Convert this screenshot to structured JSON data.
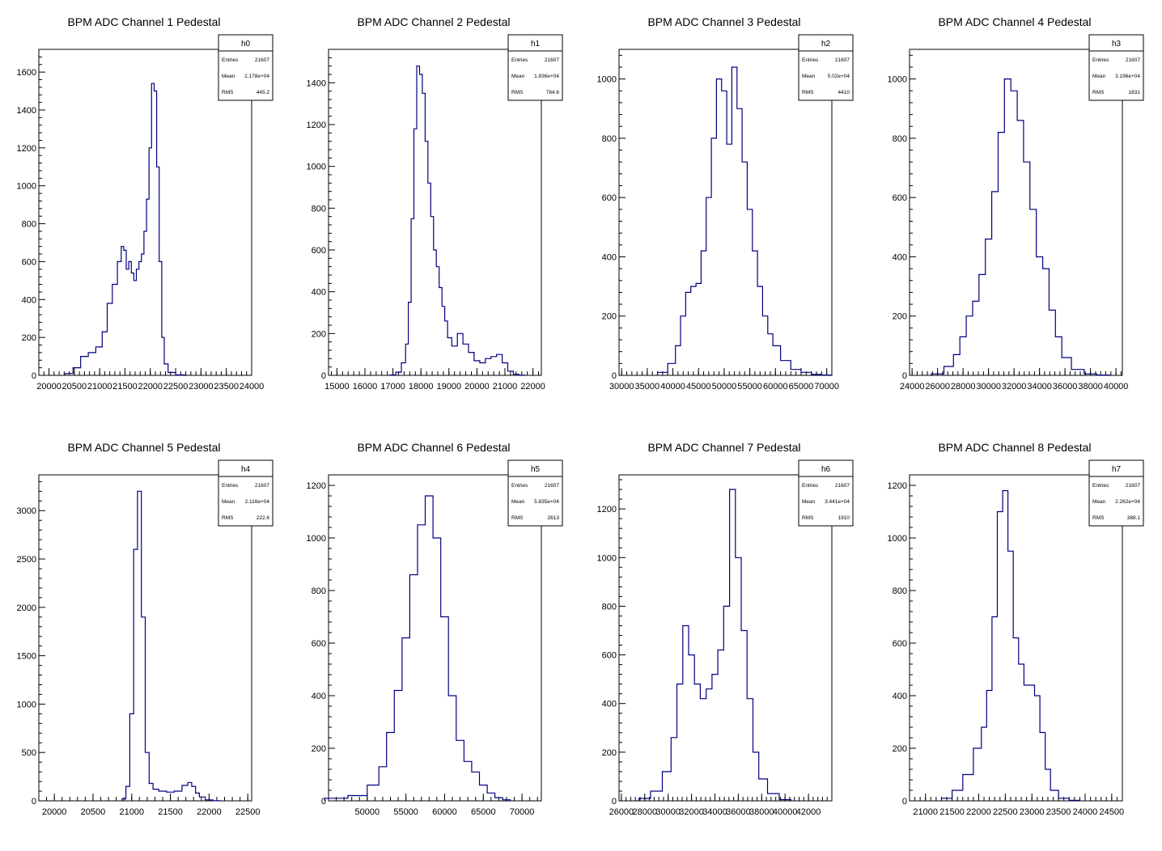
{
  "colors": {
    "line": "#000080",
    "frame": "#000000",
    "background": "#ffffff"
  },
  "stat_labels": {
    "entries": "Entries",
    "mean": "Mean",
    "rms": "RMS"
  },
  "chart_data": [
    {
      "type": "histogram",
      "title": "BPM ADC Channel 1 Pedestal",
      "stats": {
        "name": "h0",
        "entries": "21607",
        "mean": "2.178e+04",
        "rms": "445.2"
      },
      "xlim": [
        19800,
        24000
      ],
      "ylim": [
        0,
        1720
      ],
      "xticks": [
        20000,
        20500,
        21000,
        21500,
        22000,
        22500,
        23000,
        23500,
        24000
      ],
      "xtick_labels": [
        "20000",
        "20500",
        "21000",
        "21500",
        "22000",
        "22500",
        "23000",
        "23500",
        "24000"
      ],
      "yticks": [
        0,
        200,
        400,
        600,
        800,
        1000,
        1200,
        1400,
        1600
      ],
      "ytick_labels": [
        "0",
        "200",
        "400",
        "600",
        "800",
        "1000",
        "1200",
        "1400",
        "1600"
      ],
      "x": [
        20400,
        20550,
        20700,
        20850,
        21000,
        21100,
        21200,
        21300,
        21400,
        21450,
        21500,
        21550,
        21600,
        21650,
        21700,
        21750,
        21800,
        21850,
        21900,
        21950,
        22000,
        22050,
        22100,
        22150,
        22200,
        22250,
        22300,
        22400,
        22600
      ],
      "y": [
        10,
        40,
        100,
        120,
        150,
        230,
        380,
        480,
        600,
        680,
        660,
        560,
        600,
        540,
        500,
        560,
        600,
        640,
        760,
        930,
        1200,
        1540,
        1500,
        1100,
        600,
        200,
        60,
        15,
        2
      ]
    },
    {
      "type": "histogram",
      "title": "BPM ADC Channel 2 Pedestal",
      "stats": {
        "name": "h1",
        "entries": "21607",
        "mean": "1.836e+04",
        "rms": "784.6"
      },
      "xlim": [
        14700,
        22300
      ],
      "ylim": [
        0,
        1560
      ],
      "xticks": [
        15000,
        16000,
        17000,
        18000,
        19000,
        20000,
        21000,
        22000
      ],
      "xtick_labels": [
        "15000",
        "16000",
        "17000",
        "18000",
        "19000",
        "20000",
        "21000",
        "22000"
      ],
      "yticks": [
        0,
        200,
        400,
        600,
        800,
        1000,
        1200,
        1400
      ],
      "ytick_labels": [
        "0",
        "200",
        "400",
        "600",
        "800",
        "1000",
        "1200",
        "1400"
      ],
      "x": [
        17000,
        17200,
        17400,
        17500,
        17600,
        17700,
        17800,
        17900,
        18000,
        18100,
        18200,
        18300,
        18400,
        18500,
        18600,
        18700,
        18800,
        18900,
        19000,
        19200,
        19400,
        19600,
        19800,
        20000,
        20200,
        20400,
        20600,
        20800,
        21000,
        21200,
        21400,
        21600
      ],
      "y": [
        2,
        15,
        60,
        150,
        350,
        750,
        1180,
        1480,
        1440,
        1350,
        1120,
        920,
        760,
        600,
        520,
        420,
        330,
        260,
        180,
        140,
        200,
        150,
        110,
        70,
        60,
        80,
        90,
        100,
        60,
        20,
        5,
        1
      ]
    },
    {
      "type": "histogram",
      "title": "BPM ADC Channel 3 Pedestal",
      "stats": {
        "name": "h2",
        "entries": "21607",
        "mean": "5.02e+04",
        "rms": "4410"
      },
      "xlim": [
        29500,
        71000
      ],
      "ylim": [
        0,
        1100
      ],
      "xticks": [
        30000,
        35000,
        40000,
        45000,
        50000,
        55000,
        60000,
        65000,
        70000
      ],
      "xtick_labels": [
        "30000",
        "35000",
        "40000",
        "45000",
        "50000",
        "55000",
        "60000",
        "65000",
        "70000"
      ],
      "yticks": [
        0,
        200,
        400,
        600,
        800,
        1000
      ],
      "ytick_labels": [
        "0",
        "200",
        "400",
        "600",
        "800",
        "1000"
      ],
      "x": [
        38000,
        40000,
        41000,
        42000,
        43000,
        44000,
        45000,
        46000,
        47000,
        48000,
        49000,
        50000,
        51000,
        52000,
        53000,
        54000,
        55000,
        56000,
        57000,
        58000,
        59000,
        60000,
        62000,
        64000,
        66000,
        68000,
        70000
      ],
      "y": [
        10,
        40,
        100,
        200,
        280,
        300,
        310,
        420,
        600,
        800,
        1000,
        960,
        780,
        1040,
        900,
        720,
        560,
        420,
        300,
        200,
        140,
        100,
        50,
        20,
        10,
        3,
        1
      ]
    },
    {
      "type": "histogram",
      "title": "BPM ADC Channel 4 Pedestal",
      "stats": {
        "name": "h3",
        "entries": "21607",
        "mean": "3.196e+04",
        "rms": "1831"
      },
      "xlim": [
        23800,
        40500
      ],
      "ylim": [
        0,
        1100
      ],
      "xticks": [
        24000,
        26000,
        28000,
        30000,
        32000,
        34000,
        36000,
        38000,
        40000
      ],
      "xtick_labels": [
        "24000",
        "26000",
        "28000",
        "30000",
        "32000",
        "34000",
        "36000",
        "38000",
        "40000"
      ],
      "yticks": [
        0,
        200,
        400,
        600,
        800,
        1000
      ],
      "ytick_labels": [
        "0",
        "200",
        "400",
        "600",
        "800",
        "1000"
      ],
      "x": [
        26000,
        27000,
        27500,
        28000,
        28500,
        29000,
        29500,
        30000,
        30500,
        31000,
        31500,
        32000,
        32500,
        33000,
        33500,
        34000,
        34500,
        35000,
        35500,
        36000,
        37000,
        38000,
        39000
      ],
      "y": [
        5,
        30,
        70,
        130,
        200,
        250,
        340,
        460,
        620,
        820,
        1000,
        960,
        860,
        720,
        560,
        400,
        360,
        220,
        130,
        60,
        20,
        5,
        1
      ]
    },
    {
      "type": "histogram",
      "title": "BPM ADC Channel 5 Pedestal",
      "stats": {
        "name": "h4",
        "entries": "21607",
        "mean": "2.116e+04",
        "rms": "222.6"
      },
      "xlim": [
        19800,
        22550
      ],
      "ylim": [
        0,
        3370
      ],
      "xticks": [
        20000,
        20500,
        21000,
        21500,
        22000,
        22500
      ],
      "xtick_labels": [
        "20000",
        "20500",
        "21000",
        "21500",
        "22000",
        "22500"
      ],
      "yticks": [
        0,
        500,
        1000,
        1500,
        2000,
        2500,
        3000
      ],
      "ytick_labels": [
        "0",
        "500",
        "1000",
        "1500",
        "2000",
        "2500",
        "3000"
      ],
      "x": [
        20900,
        20950,
        21000,
        21050,
        21100,
        21150,
        21200,
        21250,
        21300,
        21400,
        21500,
        21600,
        21700,
        21750,
        21800,
        21850,
        21900,
        22000,
        22100
      ],
      "y": [
        20,
        150,
        900,
        2600,
        3200,
        1900,
        500,
        180,
        120,
        100,
        90,
        100,
        160,
        190,
        150,
        80,
        40,
        10,
        2
      ]
    },
    {
      "type": "histogram",
      "title": "BPM ADC Channel 6 Pedestal",
      "stats": {
        "name": "h5",
        "entries": "21607",
        "mean": "5.835e+04",
        "rms": "2613"
      },
      "xlim": [
        45000,
        72500
      ],
      "ylim": [
        0,
        1240
      ],
      "xticks": [
        50000,
        55000,
        60000,
        65000,
        70000
      ],
      "xtick_labels": [
        "50000",
        "55000",
        "60000",
        "65000",
        "70000"
      ],
      "yticks": [
        0,
        200,
        400,
        600,
        800,
        1000,
        1200
      ],
      "ytick_labels": [
        "0",
        "200",
        "400",
        "600",
        "800",
        "1000",
        "1200"
      ],
      "x": [
        46000,
        49000,
        51000,
        52000,
        53000,
        54000,
        55000,
        56000,
        57000,
        58000,
        59000,
        60000,
        61000,
        62000,
        63000,
        64000,
        65000,
        66000,
        67000,
        68000
      ],
      "y": [
        10,
        20,
        60,
        130,
        260,
        420,
        620,
        860,
        1050,
        1160,
        1000,
        700,
        400,
        230,
        150,
        110,
        60,
        30,
        12,
        4
      ]
    },
    {
      "type": "histogram",
      "title": "BPM ADC Channel 7 Pedestal",
      "stats": {
        "name": "h6",
        "entries": "21607",
        "mean": "3.441e+04",
        "rms": "1910"
      },
      "xlim": [
        25800,
        44000
      ],
      "ylim": [
        0,
        1340
      ],
      "xticks": [
        26000,
        28000,
        30000,
        32000,
        34000,
        36000,
        38000,
        40000,
        42000
      ],
      "xtick_labels": [
        "26000",
        "28000",
        "30000",
        "32000",
        "34000",
        "36000",
        "38000",
        "40000",
        "42000"
      ],
      "yticks": [
        0,
        200,
        400,
        600,
        800,
        1000,
        1200
      ],
      "ytick_labels": [
        "0",
        "200",
        "400",
        "600",
        "800",
        "1000",
        "1200"
      ],
      "x": [
        28000,
        29000,
        30000,
        30500,
        31000,
        31500,
        32000,
        32500,
        33000,
        33500,
        34000,
        34500,
        35000,
        35500,
        36000,
        36500,
        37000,
        37500,
        38000,
        39000,
        40000
      ],
      "y": [
        10,
        40,
        120,
        260,
        480,
        720,
        600,
        480,
        420,
        460,
        520,
        620,
        800,
        1280,
        1000,
        700,
        420,
        200,
        90,
        30,
        5
      ]
    },
    {
      "type": "histogram",
      "title": "BPM ADC Channel 8 Pedestal",
      "stats": {
        "name": "h7",
        "entries": "21607",
        "mean": "2.262e+04",
        "rms": "388.1"
      },
      "xlim": [
        20700,
        24700
      ],
      "ylim": [
        0,
        1240
      ],
      "xticks": [
        21000,
        21500,
        22000,
        22500,
        23000,
        23500,
        24000,
        24500
      ],
      "xtick_labels": [
        "21000",
        "21500",
        "22000",
        "22500",
        "23000",
        "23500",
        "24000",
        "24500"
      ],
      "yticks": [
        0,
        200,
        400,
        600,
        800,
        1000,
        1200
      ],
      "ytick_labels": [
        "0",
        "200",
        "400",
        "600",
        "800",
        "1000",
        "1200"
      ],
      "x": [
        21400,
        21600,
        21800,
        22000,
        22100,
        22200,
        22300,
        22400,
        22500,
        22600,
        22700,
        22800,
        22900,
        23000,
        23100,
        23200,
        23300,
        23400,
        23600,
        23800
      ],
      "y": [
        10,
        40,
        100,
        200,
        280,
        420,
        700,
        1100,
        1180,
        950,
        620,
        520,
        440,
        440,
        400,
        260,
        120,
        40,
        10,
        2
      ]
    }
  ]
}
